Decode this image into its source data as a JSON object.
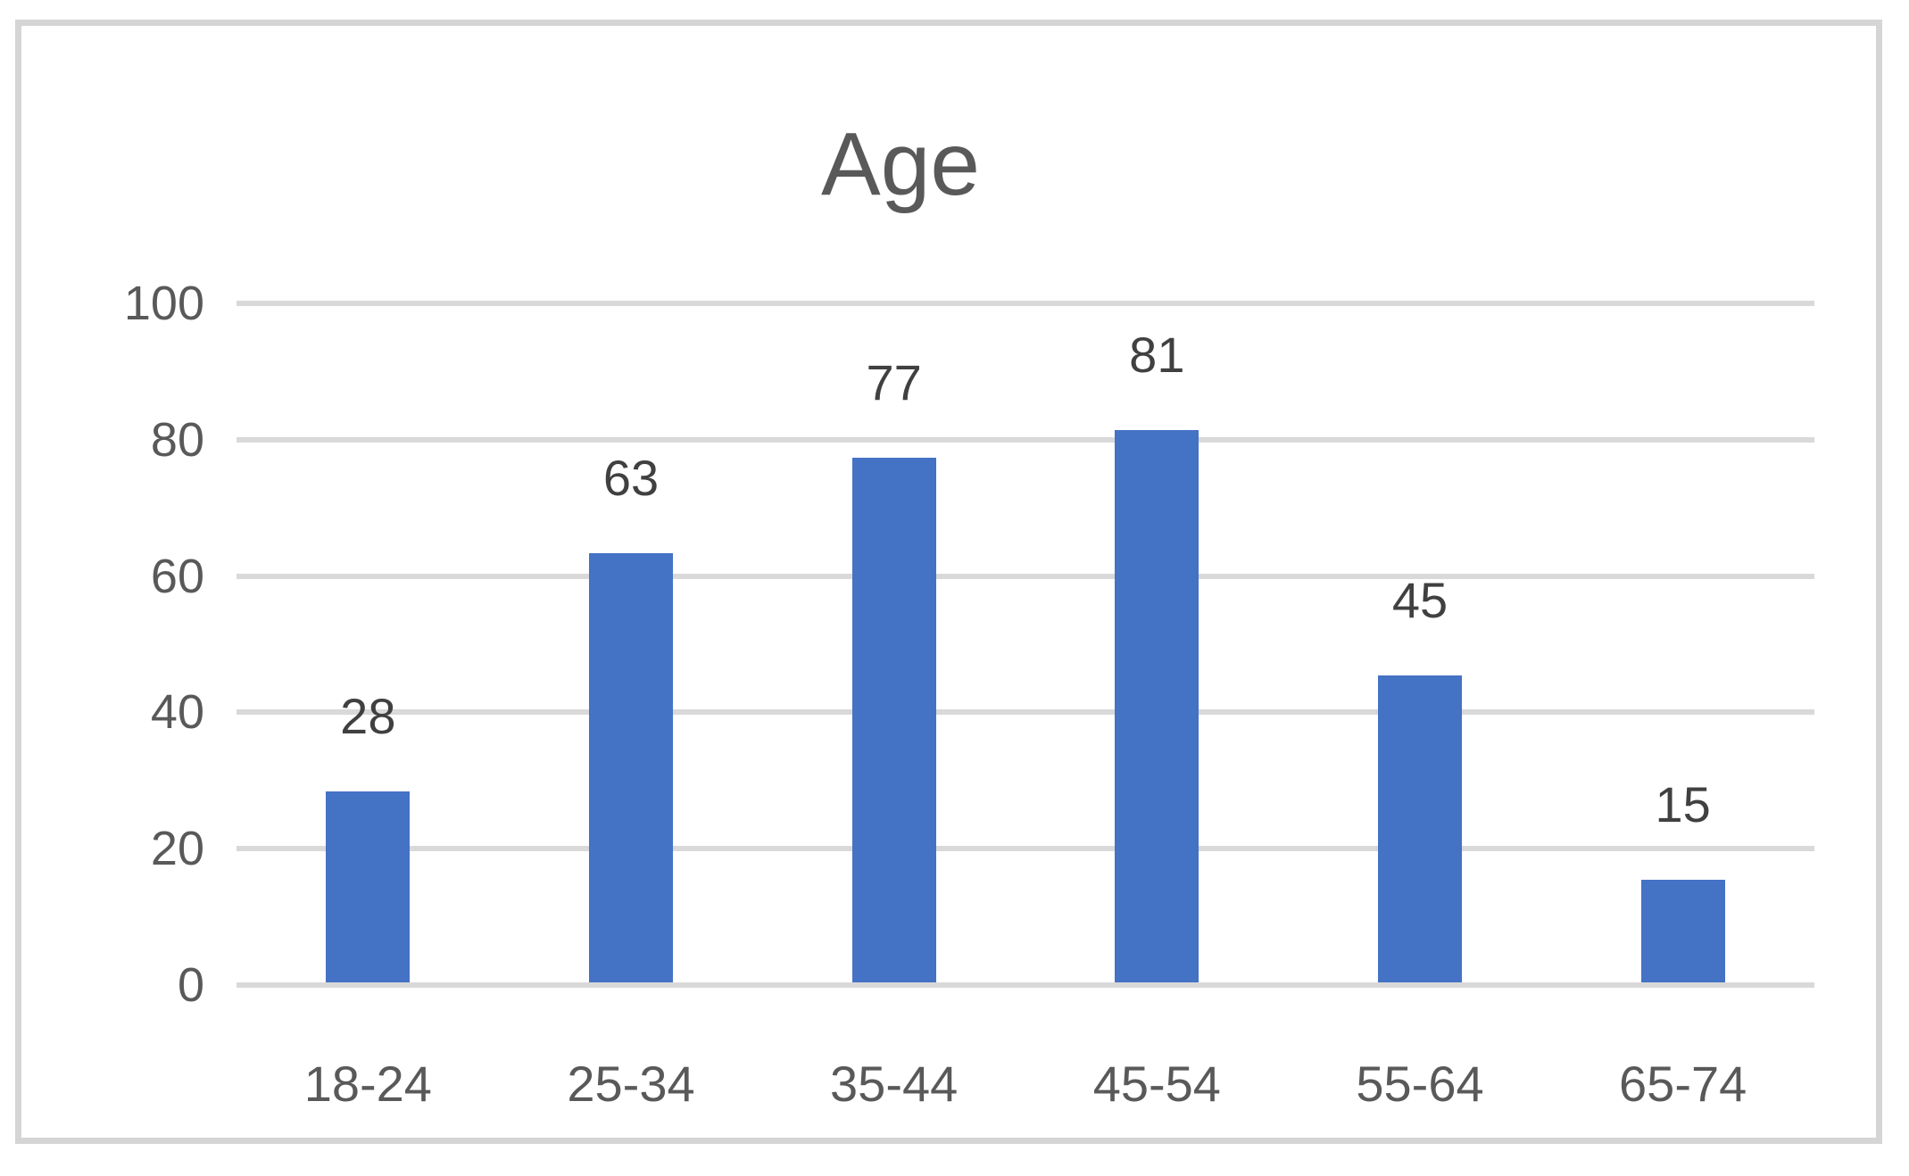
{
  "chart_data": {
    "type": "bar",
    "title": "Age",
    "categories": [
      "18-24",
      "25-34",
      "35-44",
      "45-54",
      "55-64",
      "65-74"
    ],
    "values": [
      28,
      63,
      77,
      81,
      45,
      15
    ],
    "xlabel": "",
    "ylabel": "",
    "ylim": [
      0,
      100
    ],
    "yticks": [
      0,
      20,
      40,
      60,
      80,
      100
    ],
    "grid": "horizontal",
    "legend": "none",
    "data_labels": true,
    "colors": {
      "bar": "#4472C4",
      "gridline": "#D9D9D9",
      "axis_text": "#595959",
      "data_label_text": "#404040",
      "title_text": "#595959",
      "frame_border": "#D5D5D5",
      "background": "#FFFFFF"
    }
  }
}
